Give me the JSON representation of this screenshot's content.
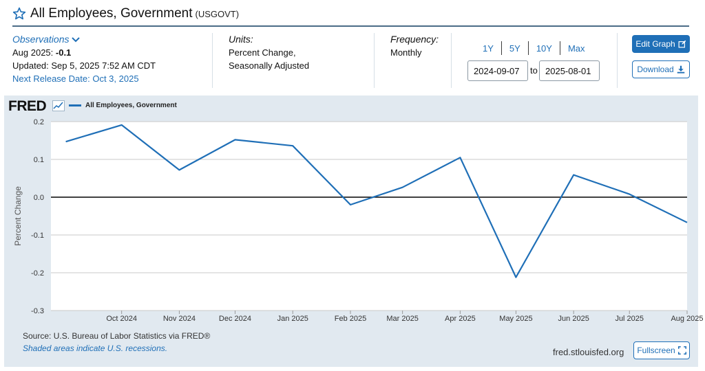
{
  "header": {
    "title": "All Employees, Government",
    "series_id": "(USGOVT)"
  },
  "observations": {
    "label": "Observations",
    "latest_prefix": "Aug 2025: ",
    "latest_value": "-0.1",
    "updated": "Updated: Sep 5, 2025 7:52 AM CDT",
    "next_release": "Next Release Date: Oct 3, 2025"
  },
  "units": {
    "label": "Units:",
    "line1": "Percent Change,",
    "line2": "Seasonally Adjusted"
  },
  "frequency": {
    "label": "Frequency:",
    "value": "Monthly"
  },
  "range": {
    "buttons": [
      "1Y",
      "5Y",
      "10Y",
      "Max"
    ],
    "start": "2024-09-07",
    "to_label": "to",
    "end": "2025-08-01"
  },
  "actions": {
    "edit": "Edit Graph",
    "download": "Download",
    "fullscreen": "Fullscreen"
  },
  "chart_footer": {
    "logo": "FRED",
    "source": "Source: U.S. Bureau of Labor Statistics via FRED®",
    "recession_note": "Shaded areas indicate U.S. recessions.",
    "url": "fred.stlouisfed.org"
  },
  "colors": {
    "accent": "#1f6fb7",
    "series": "#1f6fb7",
    "plot_background": "#ffffff",
    "panel_background": "#e1e9f0"
  },
  "chart_data": {
    "type": "line",
    "title": "",
    "xlabel": "",
    "ylabel": "Percent Change",
    "ylim": [
      -0.3,
      0.2
    ],
    "yticks": [
      "0.2",
      "0.1",
      "0.0",
      "-0.1",
      "-0.2",
      "-0.3"
    ],
    "grid": true,
    "legend": "top-left",
    "x_tick_labels": [
      "Oct 2024",
      "Nov 2024",
      "Dec 2024",
      "Jan 2025",
      "Feb 2025",
      "Mar 2025",
      "Apr 2025",
      "May 2025",
      "Jun 2025",
      "Jul 2025",
      "Aug 2025"
    ],
    "series": [
      {
        "name": "All Employees, Government",
        "x": [
          "2024-09",
          "2024-10",
          "2024-11",
          "2024-12",
          "2025-01",
          "2025-02",
          "2025-03",
          "2025-04",
          "2025-05",
          "2025-06",
          "2025-07",
          "2025-08"
        ],
        "values": [
          0.147,
          0.191,
          0.072,
          0.152,
          0.136,
          -0.02,
          0.026,
          0.105,
          -0.212,
          0.059,
          0.008,
          -0.067
        ]
      }
    ]
  }
}
